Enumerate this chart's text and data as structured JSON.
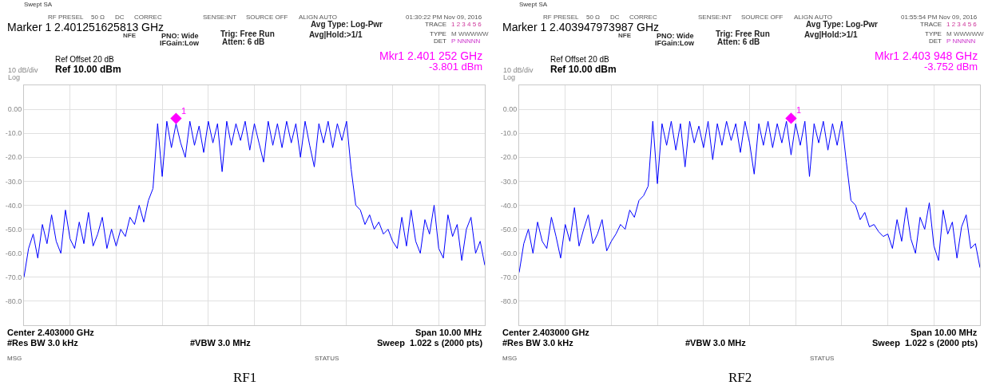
{
  "chart_data": [
    {
      "type": "line",
      "categories": [
        null,
        null,
        null,
        null,
        null,
        null,
        null,
        null,
        null,
        null,
        null,
        null,
        null,
        null,
        null,
        null,
        null,
        null,
        null,
        null,
        null,
        null,
        null,
        null,
        null,
        null,
        null,
        null,
        null,
        null,
        null,
        null,
        null,
        null,
        null,
        null,
        null,
        null,
        null,
        null,
        null,
        null,
        null,
        null,
        null,
        null,
        null,
        null,
        null,
        null,
        null,
        null,
        null,
        null,
        null,
        null,
        null,
        null,
        null,
        null,
        null,
        null,
        null,
        null,
        null,
        null,
        null,
        null,
        null,
        null,
        null,
        null,
        null,
        null,
        null,
        null,
        null,
        null,
        null,
        null,
        null,
        null,
        null,
        null,
        null,
        null,
        null,
        null,
        null,
        null,
        null,
        null,
        null,
        null,
        null,
        null,
        null,
        null,
        null,
        null,
        null
      ],
      "ylim": [
        -90,
        10
      ],
      "yticks": [
        {
          "value": 10,
          "label": null
        },
        {
          "value": 0,
          "label": "0.00"
        },
        {
          "value": -10,
          "label": "-10.0"
        },
        {
          "value": -20,
          "label": "-20.0"
        },
        {
          "value": -30,
          "label": "-30.0"
        },
        {
          "value": -40,
          "label": "-40.0"
        },
        {
          "value": -50,
          "label": "-50.0"
        },
        {
          "value": -60,
          "label": "-60.0"
        },
        {
          "value": -70,
          "label": "-70.0"
        },
        {
          "value": -80,
          "label": "-80.0"
        },
        {
          "value": -90,
          "label": null
        }
      ],
      "grid": true,
      "series": [
        {
          "color": "#0000ff",
          "values": [
            -70,
            -58,
            -52,
            -62,
            -48,
            -56,
            -44,
            -55,
            -60,
            -42,
            -54,
            -58,
            -47,
            -56,
            -43,
            -57,
            -52,
            -45,
            -58,
            -50,
            -57,
            -50,
            -53,
            -45,
            -48,
            -40,
            -47,
            -38,
            -33,
            -6,
            -28,
            -5,
            -16,
            -6,
            -14,
            -20,
            -5,
            -15,
            -7,
            -18,
            -5,
            -14,
            -6,
            -26,
            -5,
            -15,
            -6,
            -13,
            -5,
            -17,
            -6,
            -14,
            -22,
            -5,
            -15,
            -6,
            -16,
            -5,
            -14,
            -6,
            -20,
            -5,
            -15,
            -24,
            -6,
            -14,
            -5,
            -16,
            -6,
            -13,
            -5,
            -25,
            -40,
            -42,
            -48,
            -44,
            -50,
            -47,
            -52,
            -50,
            -55,
            -58,
            -45,
            -57,
            -42,
            -55,
            -60,
            -46,
            -52,
            -40,
            -58,
            -62,
            -44,
            -53,
            -48,
            -63,
            -50,
            -45,
            -60,
            -55,
            -65
          ]
        },
        {
          "type": "scatter",
          "marker": "diamond",
          "color": "#ff00ff",
          "values": [
            null,
            null,
            null,
            null,
            null,
            null,
            null,
            null,
            null,
            null,
            null,
            null,
            null,
            null,
            null,
            null,
            null,
            null,
            null,
            null,
            null,
            null,
            null,
            null,
            null,
            null,
            null,
            null,
            null,
            null,
            null,
            null,
            null,
            -3.801,
            null,
            null,
            null,
            null,
            null,
            null,
            null,
            null,
            null,
            null,
            null,
            null,
            null,
            null,
            null,
            null,
            null,
            null,
            null,
            null,
            null,
            null,
            null,
            null,
            null,
            null,
            null,
            null,
            null,
            null,
            null,
            null,
            null,
            null,
            null,
            null,
            null,
            null,
            null,
            null,
            null,
            null,
            null,
            null,
            null,
            null,
            null,
            null,
            null,
            null,
            null,
            null,
            null,
            null,
            null,
            null,
            null,
            null,
            null,
            null,
            null,
            null,
            null,
            null,
            null,
            null,
            null
          ]
        }
      ],
      "annotations": [
        "Swept SA",
        "RF PRESEL",
        "50 Ω",
        "DC",
        "CORREC",
        "SENSE:INT",
        "SOURCE OFF",
        "ALIGN AUTO",
        "01:30:22 PM Nov 09, 2016",
        "Marker 1 2.401251625813 GHz",
        "NFE",
        "PNO: Wide",
        "IFGain:Low",
        "Trig: Free Run",
        "Atten: 6 dB",
        "Avg Type: Log-Pwr",
        "Avg|Hold:>1/1",
        "TRACE",
        "1 2 3 4 5 6",
        "TYPE",
        "M WWWWW",
        "DET",
        "P NNNNN",
        "Ref Offset 20 dB",
        "Ref 10.00 dBm",
        "10 dB/div",
        "Log",
        "Mkr1 2.401 252 GHz",
        "-3.801 dBm",
        "Center 2.403000 GHz",
        "#Res BW 3.0 kHz",
        "#VBW 3.0 MHz",
        "Span 10.00 MHz",
        "Sweep  1.022 s (2000 pts)",
        "MSG",
        "STATUS",
        "RF1",
        "1"
      ]
    },
    {
      "type": "line",
      "categories": [
        null,
        null,
        null,
        null,
        null,
        null,
        null,
        null,
        null,
        null,
        null,
        null,
        null,
        null,
        null,
        null,
        null,
        null,
        null,
        null,
        null,
        null,
        null,
        null,
        null,
        null,
        null,
        null,
        null,
        null,
        null,
        null,
        null,
        null,
        null,
        null,
        null,
        null,
        null,
        null,
        null,
        null,
        null,
        null,
        null,
        null,
        null,
        null,
        null,
        null,
        null,
        null,
        null,
        null,
        null,
        null,
        null,
        null,
        null,
        null,
        null,
        null,
        null,
        null,
        null,
        null,
        null,
        null,
        null,
        null,
        null,
        null,
        null,
        null,
        null,
        null,
        null,
        null,
        null,
        null,
        null,
        null,
        null,
        null,
        null,
        null,
        null,
        null,
        null,
        null,
        null,
        null,
        null,
        null,
        null,
        null,
        null,
        null,
        null,
        null,
        null
      ],
      "ylim": [
        -90,
        10
      ],
      "yticks": [
        {
          "value": 10,
          "label": null
        },
        {
          "value": 0,
          "label": "0.00"
        },
        {
          "value": -10,
          "label": "-10.0"
        },
        {
          "value": -20,
          "label": "-20.0"
        },
        {
          "value": -30,
          "label": "-30.0"
        },
        {
          "value": -40,
          "label": "-40.0"
        },
        {
          "value": -50,
          "label": "-50.0"
        },
        {
          "value": -60,
          "label": "-60.0"
        },
        {
          "value": -70,
          "label": "-70.0"
        },
        {
          "value": -80,
          "label": "-80.0"
        },
        {
          "value": -90,
          "label": null
        }
      ],
      "grid": true,
      "series": [
        {
          "color": "#0000ff",
          "values": [
            -68,
            -56,
            -50,
            -60,
            -47,
            -55,
            -58,
            -45,
            -53,
            -62,
            -48,
            -55,
            -41,
            -57,
            -50,
            -44,
            -56,
            -52,
            -46,
            -59,
            -55,
            -52,
            -48,
            -50,
            -42,
            -45,
            -38,
            -36,
            -32,
            -5,
            -31,
            -6,
            -15,
            -5,
            -17,
            -6,
            -24,
            -5,
            -14,
            -7,
            -16,
            -5,
            -21,
            -6,
            -15,
            -5,
            -13,
            -6,
            -18,
            -5,
            -14,
            -27,
            -6,
            -15,
            -5,
            -16,
            -6,
            -14,
            -5,
            -19,
            -6,
            -15,
            -5,
            -28,
            -6,
            -14,
            -5,
            -17,
            -6,
            -15,
            -5,
            -22,
            -38,
            -40,
            -46,
            -43,
            -49,
            -48,
            -51,
            -53,
            -52,
            -58,
            -46,
            -55,
            -41,
            -54,
            -60,
            -45,
            -50,
            -39,
            -57,
            -63,
            -42,
            -52,
            -47,
            -62,
            -49,
            -44,
            -58,
            -56,
            -66
          ]
        },
        {
          "type": "scatter",
          "marker": "diamond",
          "color": "#ff00ff",
          "values": [
            null,
            null,
            null,
            null,
            null,
            null,
            null,
            null,
            null,
            null,
            null,
            null,
            null,
            null,
            null,
            null,
            null,
            null,
            null,
            null,
            null,
            null,
            null,
            null,
            null,
            null,
            null,
            null,
            null,
            null,
            null,
            null,
            null,
            null,
            null,
            null,
            null,
            null,
            null,
            null,
            null,
            null,
            null,
            null,
            null,
            null,
            null,
            null,
            null,
            null,
            null,
            null,
            null,
            null,
            null,
            null,
            null,
            null,
            null,
            -3.752,
            null,
            null,
            null,
            null,
            null,
            null,
            null,
            null,
            null,
            null,
            null,
            null,
            null,
            null,
            null,
            null,
            null,
            null,
            null,
            null,
            null,
            null,
            null,
            null,
            null,
            null,
            null,
            null,
            null,
            null,
            null,
            null,
            null,
            null,
            null,
            null,
            null,
            null,
            null,
            null,
            null
          ]
        }
      ],
      "annotations": [
        "Swept SA",
        "RF PRESEL",
        "50 Ω",
        "DC",
        "CORREC",
        "SENSE:INT",
        "SOURCE OFF",
        "ALIGN AUTO",
        "01:55:54 PM Nov 09, 2016",
        "Marker 1 2.403947973987 GHz",
        "NFE",
        "PNO: Wide",
        "IFGain:Low",
        "Trig: Free Run",
        "Atten: 6 dB",
        "Avg Type: Log-Pwr",
        "Avg|Hold:>1/1",
        "TRACE",
        "1 2 3 4 5 6",
        "TYPE",
        "M WWWWW",
        "DET",
        "P NNNNN",
        "Ref Offset 20 dB",
        "Ref 10.00 dBm",
        "10 dB/div",
        "Log",
        "Mkr1 2.403 948 GHz",
        "-3.752 dBm",
        "Center 2.403000 GHz",
        "#Res BW 3.0 kHz",
        "#VBW 3.0 MHz",
        "Span 10.00 MHz",
        "Sweep  1.022 s (2000 pts)",
        "MSG",
        "STATUS",
        "RF2",
        "1"
      ]
    }
  ]
}
